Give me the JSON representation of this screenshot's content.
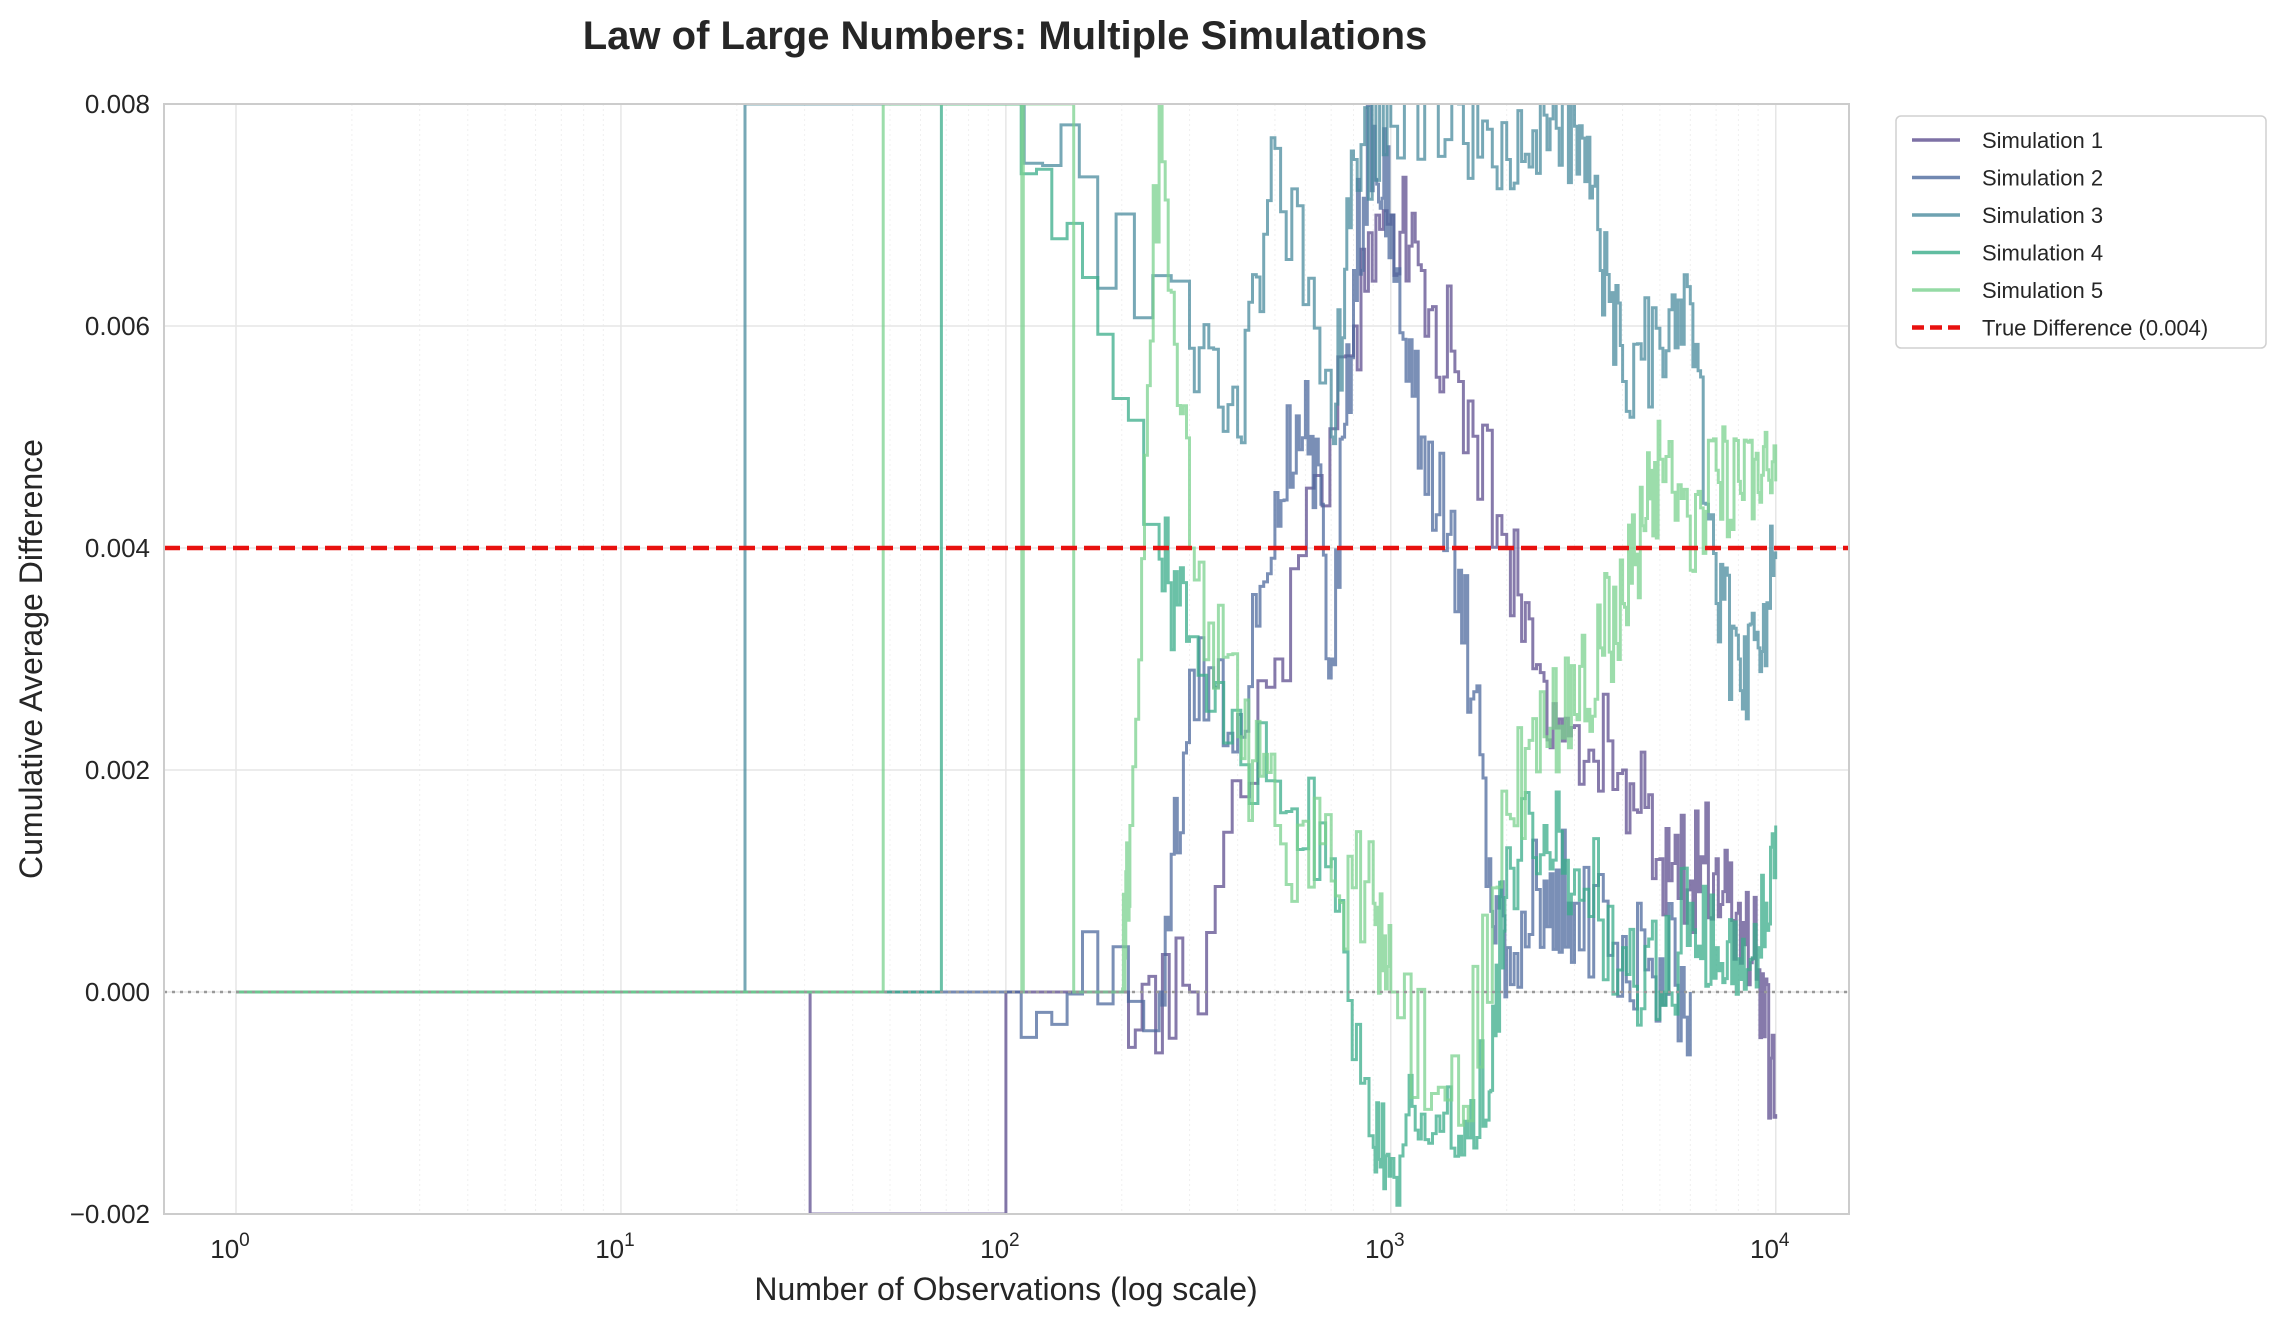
{
  "chart_data": {
    "type": "line",
    "title": "Law of Large Numbers: Multiple Simulations",
    "xlabel": "Number of Observations (log scale)",
    "ylabel": "Cumulative Average Difference",
    "xscale": "log",
    "xlim": [
      0.65,
      15500
    ],
    "ylim": [
      -0.002,
      0.008
    ],
    "x_ticks": [
      {
        "base": "10",
        "exp": "0"
      },
      {
        "base": "10",
        "exp": "1"
      },
      {
        "base": "10",
        "exp": "2"
      },
      {
        "base": "10",
        "exp": "3"
      },
      {
        "base": "10",
        "exp": "4"
      }
    ],
    "y_ticks": [
      "−0.002",
      "0.000",
      "0.002",
      "0.004",
      "0.006",
      "0.008"
    ],
    "grid": true,
    "legend_position": "outside upper right",
    "series": [
      {
        "name": "Simulation 1",
        "color": "#5d4e8f",
        "x": [
          1,
          30,
          31,
          50,
          100,
          200,
          300,
          500,
          800,
          1000,
          1200,
          1500,
          2000,
          2500,
          3000,
          4000,
          5000,
          6000,
          7000,
          8000,
          9000,
          10000
        ],
        "y": [
          0.0,
          0.0,
          -0.002,
          -0.002,
          0.0,
          0.0,
          0.0,
          0.003,
          0.006,
          0.007,
          0.0065,
          0.0055,
          0.004,
          0.0028,
          0.0024,
          0.002,
          0.0012,
          0.001,
          0.0012,
          0.0008,
          0.0002,
          -0.0011
        ]
      },
      {
        "name": "Simulation 2",
        "color": "#4d6a9d",
        "x": [
          1,
          30,
          100,
          250,
          300,
          400,
          500,
          600,
          700,
          800,
          900,
          1000,
          1200,
          1500,
          1800,
          2000,
          2500,
          3000,
          4000,
          5000,
          6000
        ],
        "y": [
          0.0,
          0.0,
          0.0,
          0.0,
          0.0029,
          0.0025,
          0.0045,
          0.0055,
          0.003,
          0.0065,
          0.0078,
          0.007,
          0.005,
          0.0038,
          0.0012,
          0.0004,
          0.001,
          0.0008,
          0.0005,
          0.0003,
          0.0
        ]
      },
      {
        "name": "Simulation 3",
        "color": "#4a8b9d",
        "x": [
          1,
          20,
          21,
          100,
          300,
          400,
          500,
          700,
          800,
          1000,
          1500,
          2000,
          2500,
          3000,
          3500,
          4000,
          5000,
          6000,
          7000,
          8000,
          9000,
          10000
        ],
        "y": [
          0.0,
          0.0,
          0.008,
          0.008,
          0.0058,
          0.005,
          0.0076,
          0.005,
          0.0075,
          0.0078,
          0.008,
          0.0075,
          0.0079,
          0.0078,
          0.0065,
          0.0055,
          0.0058,
          0.0062,
          0.0035,
          0.003,
          0.0031,
          0.0039
        ]
      },
      {
        "name": "Simulation 4",
        "color": "#3aac8a",
        "x": [
          1,
          30,
          40,
          67,
          68,
          100,
          250,
          300,
          500,
          700,
          900,
          1000,
          1200,
          1500,
          1800,
          2000,
          2500,
          3000,
          4000,
          5000,
          6000,
          7000,
          8000,
          9000,
          10000
        ],
        "y": [
          0.0,
          0.0,
          0.0,
          0.0,
          0.008,
          0.008,
          0.0039,
          0.0032,
          0.0019,
          0.0012,
          -0.0014,
          -0.0015,
          -0.0011,
          -0.0013,
          -0.0009,
          0.0013,
          0.0015,
          0.0011,
          0.0004,
          0.0,
          0.0008,
          0.0004,
          0.0003,
          0.0004,
          0.0015
        ]
      },
      {
        "name": "Simulation 5",
        "color": "#7bd18f",
        "x": [
          1,
          47,
          48,
          100,
          110,
          111,
          150,
          200,
          210,
          250,
          300,
          400,
          500,
          700,
          900,
          1000,
          1500,
          2000,
          2500,
          3000,
          3500,
          4000,
          4500,
          5000,
          6000,
          7000,
          8000,
          9000,
          10000
        ],
        "y": [
          0.0,
          0.0,
          0.008,
          0.008,
          0.0,
          0.008,
          0.0,
          0.0,
          0.0015,
          0.008,
          0.004,
          0.0023,
          0.0015,
          0.001,
          0.0008,
          0.0,
          -0.0012,
          0.0016,
          0.0023,
          0.0025,
          0.0031,
          0.0035,
          0.0042,
          0.0048,
          0.0038,
          0.0047,
          0.0046,
          0.0045,
          0.0046
        ]
      }
    ],
    "reference_lines": [
      {
        "name": "True Difference (0.004)",
        "y": 0.004,
        "color": "#e8110f",
        "style": "dashed"
      },
      {
        "name": "",
        "y": 0.0,
        "color": "#999999",
        "style": "dotted"
      }
    ]
  }
}
